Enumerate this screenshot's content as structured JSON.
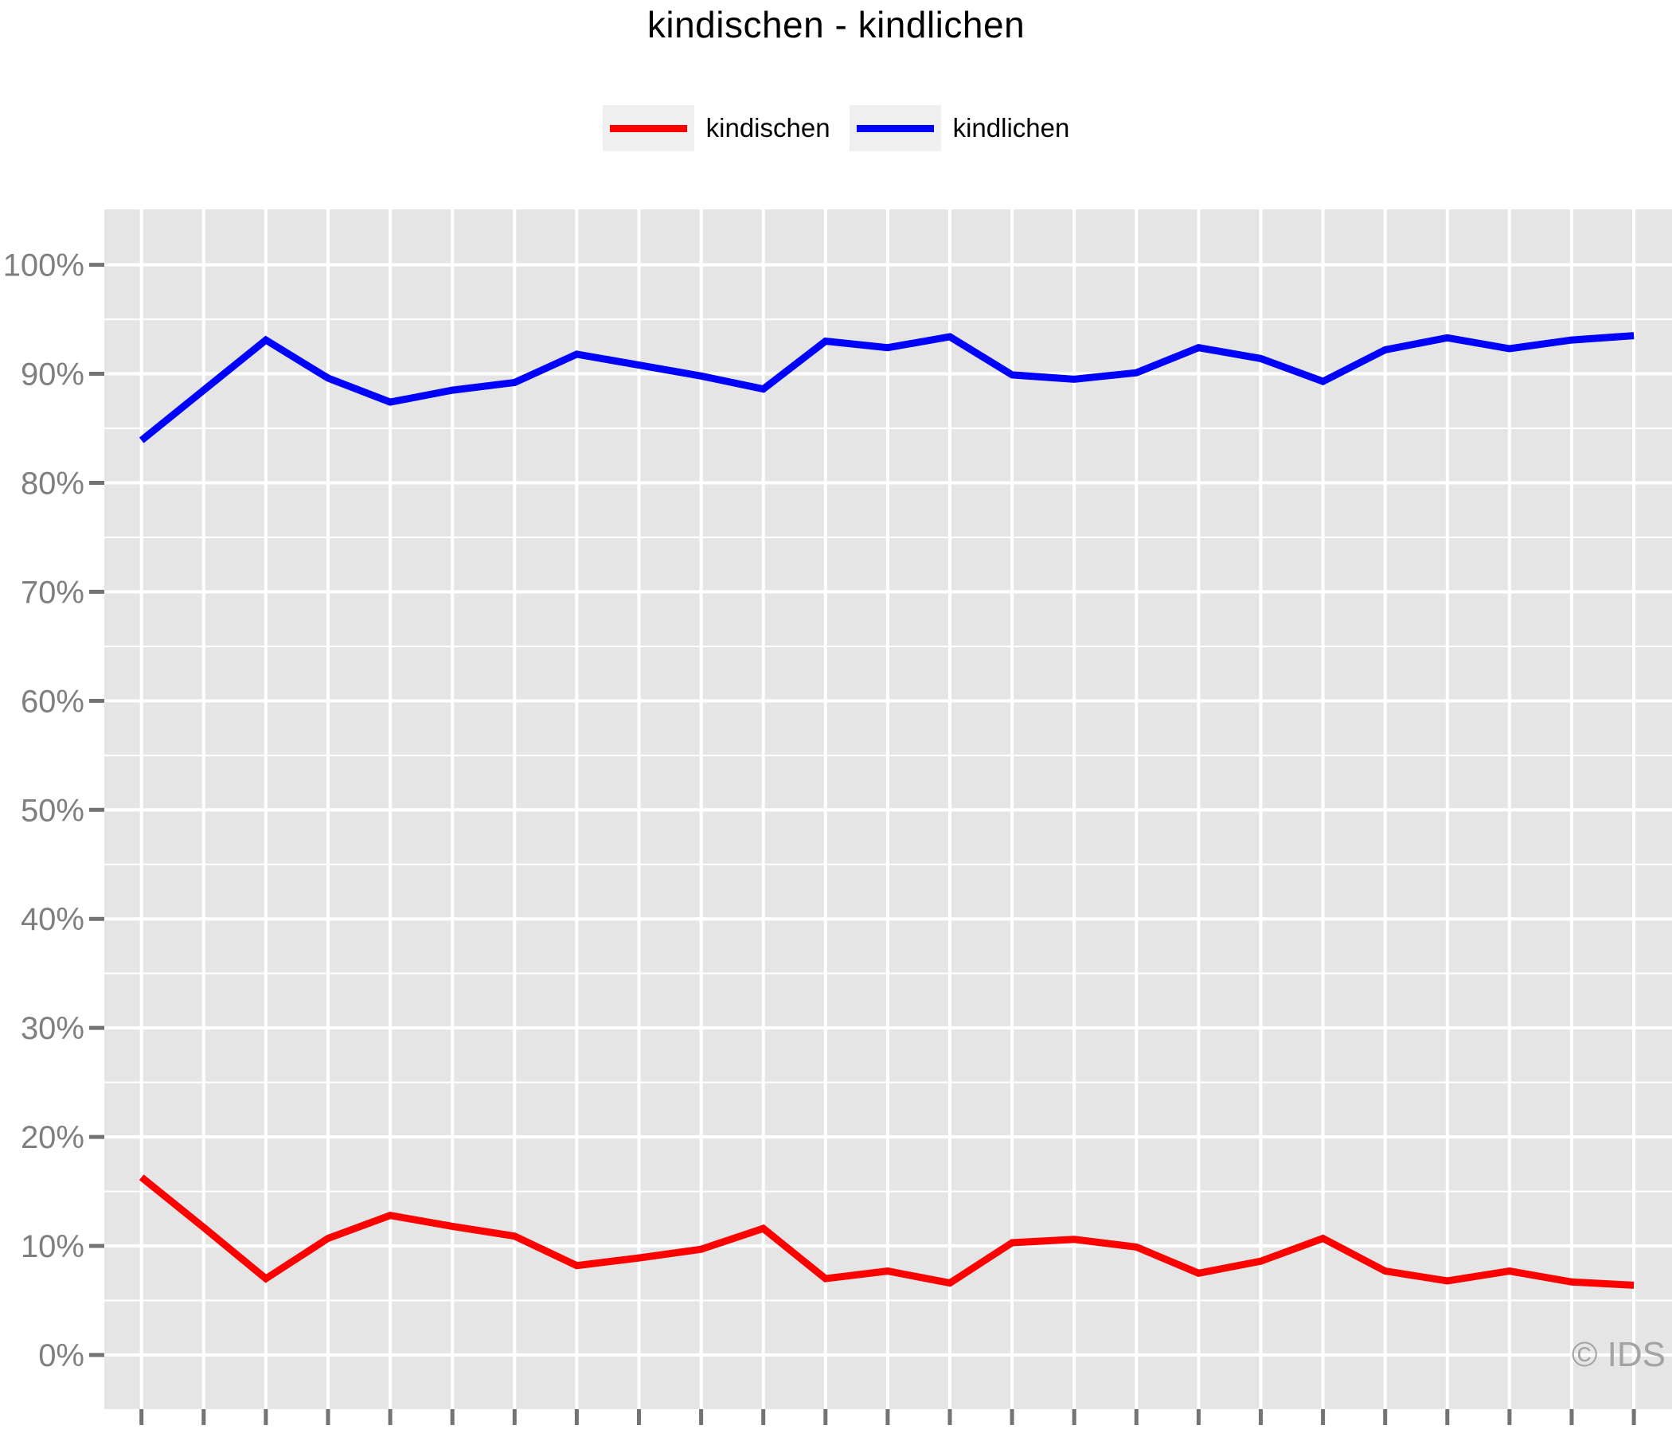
{
  "header": {
    "watermark": "© IDS"
  },
  "legend": [
    {
      "label": "kindischen",
      "color": "#ff0000"
    },
    {
      "label": "kindlichen",
      "color": "#0000ff"
    }
  ],
  "colors": {
    "panel_background": "#e5e5e5",
    "gridline": "#ffffff",
    "axis_text": "#7f7f7f",
    "tick_mark": "#737373",
    "watermark": "#a3a3a3",
    "title_text": "#000000",
    "series_red": "#ff0000",
    "series_blue": "#0000ff"
  },
  "chart_data": {
    "type": "line",
    "title": "kindischen - kindlichen",
    "xlabel": "",
    "ylabel": "",
    "x_point_count": 25,
    "x_tick_labels_visible": false,
    "note": "x axis tick labels are cut off at the bottom edge of the screenshot; 25 evenly spaced x positions each marked with a tick and a vertical gridline",
    "ylim": [
      -5,
      105
    ],
    "y_major_step": 10,
    "y_minor_step": 5,
    "y_tick_labels": [
      "0%",
      "10%",
      "20%",
      "30%",
      "40%",
      "50%",
      "60%",
      "70%",
      "80%",
      "90%",
      "100%"
    ],
    "grid": "white major+minor horizontal lines and major vertical lines on gray panel",
    "legend_position": "top-center",
    "series": [
      {
        "name": "kindischen",
        "color": "#ff0000",
        "values": [
          16.3,
          11.7,
          7.0,
          10.7,
          12.8,
          11.8,
          10.9,
          8.2,
          8.9,
          9.7,
          11.6,
          7.0,
          7.7,
          6.6,
          10.3,
          10.6,
          9.9,
          7.5,
          8.6,
          10.7,
          7.7,
          6.8,
          7.7,
          6.7,
          6.4
        ]
      },
      {
        "name": "kindlichen",
        "color": "#0000ff",
        "values": [
          83.9,
          88.5,
          93.1,
          89.6,
          87.4,
          88.5,
          89.2,
          91.8,
          90.8,
          89.8,
          88.6,
          93.0,
          92.4,
          93.4,
          89.9,
          89.5,
          90.1,
          92.4,
          91.4,
          89.3,
          92.2,
          93.3,
          92.3,
          93.1,
          93.5
        ]
      }
    ]
  }
}
